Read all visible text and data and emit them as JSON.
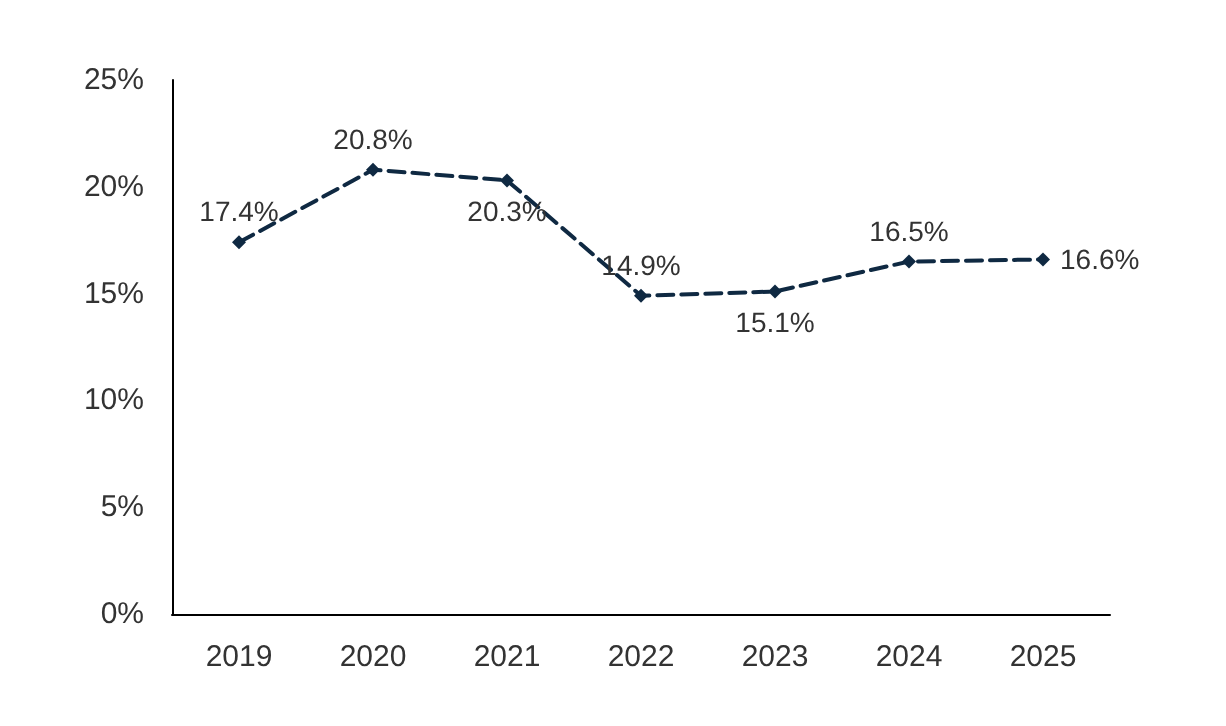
{
  "chart_data": {
    "type": "line",
    "categories": [
      "2019",
      "2020",
      "2021",
      "2022",
      "2023",
      "2024",
      "2025"
    ],
    "series": [
      {
        "color": "#0f2942",
        "values": [
          17.4,
          20.8,
          20.3,
          14.9,
          15.1,
          16.5,
          16.6
        ],
        "value_labels": [
          "17.4%",
          "20.8%",
          "20.3%",
          "14.9%",
          "15.1%",
          "16.5%",
          "16.6%"
        ]
      }
    ],
    "ylim": [
      0,
      25
    ],
    "yticks": [
      {
        "value": 0,
        "label": "0%"
      },
      {
        "value": 5,
        "label": "5%"
      },
      {
        "value": 10,
        "label": "10%"
      },
      {
        "value": 15,
        "label": "15%"
      },
      {
        "value": 20,
        "label": "20%"
      },
      {
        "value": 25,
        "label": "25%"
      }
    ],
    "grid": false,
    "marker": "diamond",
    "line_style": "dashed"
  }
}
